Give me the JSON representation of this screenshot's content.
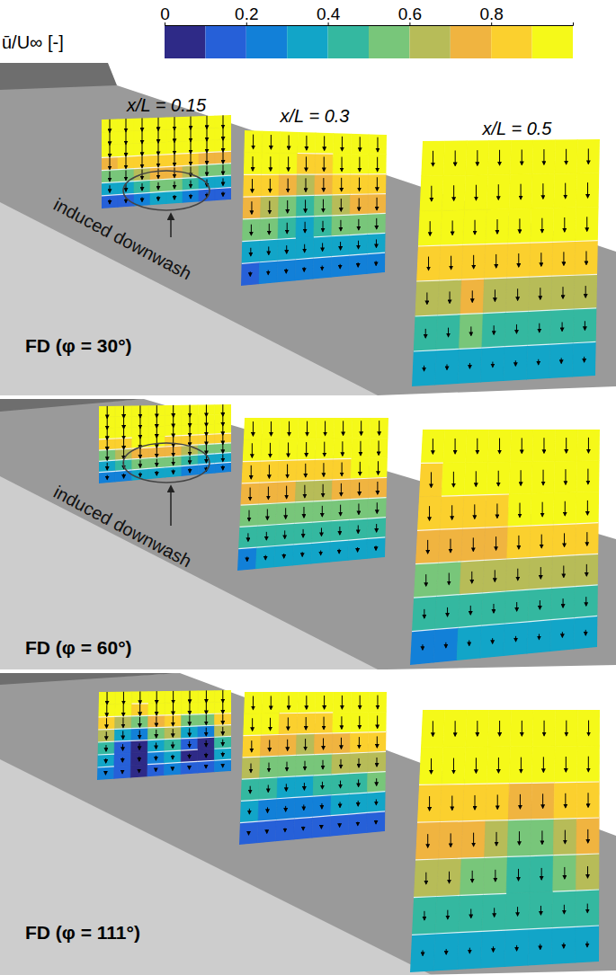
{
  "chart_data": {
    "type": "contour_panels",
    "colorbar": {
      "label": "ū/U∞ [-]",
      "range": [
        0,
        1
      ],
      "ticks": [
        0,
        0.2,
        0.4,
        0.6,
        0.8
      ],
      "colors": [
        "#2e2a87",
        "#2660d8",
        "#1280d8",
        "#12a5c8",
        "#34b8a0",
        "#78c67a",
        "#b7bc58",
        "#f0b440",
        "#fbd02e",
        "#f5f919"
      ]
    },
    "plane_labels": [
      "x/L = 0.15",
      "x/L = 0.3",
      "x/L = 0.5"
    ],
    "panels": [
      {
        "title": "FD (φ = 30°)",
        "annotation": "induced downwash",
        "planes": [
          {
            "cells": [
              [
                0.95,
                0.95,
                0.95,
                0.95,
                0.95,
                0.95,
                0.95,
                0.95
              ],
              [
                0.95,
                0.95,
                0.95,
                0.95,
                0.95,
                0.95,
                0.95,
                0.95
              ],
              [
                0.95,
                0.95,
                0.95,
                0.95,
                0.95,
                0.95,
                0.95,
                0.95
              ],
              [
                0.75,
                0.8,
                0.85,
                0.85,
                0.85,
                0.8,
                0.75,
                0.75
              ],
              [
                0.5,
                0.55,
                0.65,
                0.75,
                0.7,
                0.6,
                0.5,
                0.5
              ],
              [
                0.3,
                0.35,
                0.45,
                0.55,
                0.5,
                0.4,
                0.3,
                0.3
              ],
              [
                0.15,
                0.15,
                0.25,
                0.35,
                0.3,
                0.2,
                0.15,
                0.15
              ]
            ],
            "w": [
              -0.3,
              -0.3,
              -0.28,
              -0.26,
              -0.22,
              -0.16,
              -0.1
            ]
          },
          {
            "cells": [
              [
                0.95,
                0.95,
                0.95,
                0.95,
                0.95,
                0.95,
                0.95,
                0.95
              ],
              [
                0.95,
                0.95,
                0.95,
                0.85,
                0.85,
                0.95,
                0.95,
                0.95
              ],
              [
                0.85,
                0.8,
                0.75,
                0.65,
                0.7,
                0.8,
                0.85,
                0.85
              ],
              [
                0.7,
                0.65,
                0.55,
                0.45,
                0.5,
                0.65,
                0.7,
                0.7
              ],
              [
                0.5,
                0.5,
                0.45,
                0.35,
                0.4,
                0.5,
                0.5,
                0.5
              ],
              [
                0.35,
                0.35,
                0.3,
                0.3,
                0.3,
                0.35,
                0.35,
                0.35
              ],
              [
                0.15,
                0.2,
                0.2,
                0.2,
                0.2,
                0.2,
                0.2,
                0.2
              ]
            ],
            "w": [
              -0.32,
              -0.32,
              -0.3,
              -0.28,
              -0.24,
              -0.18,
              -0.1
            ]
          },
          {
            "cells": [
              [
                0.95,
                0.95,
                0.95,
                0.95,
                0.95,
                0.95,
                0.95,
                0.95
              ],
              [
                0.95,
                0.95,
                0.95,
                0.95,
                0.95,
                0.95,
                0.95,
                0.95
              ],
              [
                0.95,
                0.95,
                0.95,
                0.95,
                0.95,
                0.95,
                0.95,
                0.95
              ],
              [
                0.8,
                0.8,
                0.85,
                0.85,
                0.8,
                0.8,
                0.8,
                0.8
              ],
              [
                0.65,
                0.65,
                0.7,
                0.65,
                0.6,
                0.6,
                0.6,
                0.6
              ],
              [
                0.45,
                0.45,
                0.5,
                0.45,
                0.4,
                0.45,
                0.45,
                0.45
              ],
              [
                0.35,
                0.35,
                0.35,
                0.3,
                0.3,
                0.35,
                0.35,
                0.35
              ]
            ],
            "w": [
              -0.34,
              -0.34,
              -0.32,
              -0.3,
              -0.26,
              -0.2,
              -0.12
            ]
          }
        ]
      },
      {
        "title": "FD (φ = 60°)",
        "annotation": "induced downwash",
        "planes": [
          {
            "cells": [
              [
                0.95,
                0.95,
                0.95,
                0.95,
                0.95,
                0.95,
                0.95,
                0.95
              ],
              [
                0.95,
                0.95,
                0.95,
                0.95,
                0.95,
                0.95,
                0.95,
                0.95
              ],
              [
                0.95,
                0.95,
                0.95,
                0.95,
                0.95,
                0.95,
                0.95,
                0.95
              ],
              [
                0.8,
                0.85,
                0.9,
                0.9,
                0.85,
                0.8,
                0.8,
                0.8
              ],
              [
                0.55,
                0.6,
                0.7,
                0.75,
                0.7,
                0.6,
                0.55,
                0.55
              ],
              [
                0.35,
                0.4,
                0.5,
                0.55,
                0.5,
                0.4,
                0.35,
                0.35
              ],
              [
                0.2,
                0.2,
                0.3,
                0.35,
                0.3,
                0.25,
                0.2,
                0.2
              ]
            ],
            "w": [
              -0.3,
              -0.3,
              -0.28,
              -0.26,
              -0.22,
              -0.16,
              -0.1
            ]
          },
          {
            "cells": [
              [
                0.95,
                0.95,
                0.95,
                0.95,
                0.95,
                0.95,
                0.95,
                0.95
              ],
              [
                0.95,
                0.95,
                0.95,
                0.95,
                0.95,
                0.95,
                0.95,
                0.95
              ],
              [
                0.85,
                0.85,
                0.85,
                0.8,
                0.8,
                0.85,
                0.9,
                0.9
              ],
              [
                0.7,
                0.7,
                0.7,
                0.65,
                0.65,
                0.7,
                0.75,
                0.75
              ],
              [
                0.55,
                0.55,
                0.55,
                0.5,
                0.5,
                0.55,
                0.55,
                0.55
              ],
              [
                0.4,
                0.4,
                0.4,
                0.4,
                0.4,
                0.4,
                0.4,
                0.4
              ],
              [
                0.25,
                0.3,
                0.3,
                0.3,
                0.3,
                0.3,
                0.3,
                0.3
              ]
            ],
            "w": [
              -0.32,
              -0.32,
              -0.3,
              -0.28,
              -0.24,
              -0.18,
              -0.1
            ]
          },
          {
            "cells": [
              [
                0.95,
                0.95,
                0.95,
                0.95,
                0.95,
                0.95,
                0.95,
                0.95
              ],
              [
                0.85,
                0.9,
                0.95,
                0.95,
                0.95,
                0.95,
                0.95,
                0.95
              ],
              [
                0.8,
                0.8,
                0.85,
                0.85,
                0.9,
                0.9,
                0.95,
                0.95
              ],
              [
                0.7,
                0.7,
                0.75,
                0.75,
                0.8,
                0.8,
                0.8,
                0.85
              ],
              [
                0.55,
                0.55,
                0.6,
                0.6,
                0.65,
                0.65,
                0.65,
                0.65
              ],
              [
                0.4,
                0.4,
                0.45,
                0.45,
                0.45,
                0.45,
                0.45,
                0.45
              ],
              [
                0.2,
                0.25,
                0.3,
                0.35,
                0.35,
                0.35,
                0.35,
                0.35
              ]
            ],
            "w": [
              -0.34,
              -0.34,
              -0.32,
              -0.3,
              -0.26,
              -0.2,
              -0.12
            ]
          }
        ]
      },
      {
        "title": "FD (φ = 111°)",
        "planes": [
          {
            "cells": [
              [
                0.95,
                0.95,
                0.95,
                0.95,
                0.95,
                0.95,
                0.95,
                0.95
              ],
              [
                0.95,
                0.9,
                0.85,
                0.9,
                0.95,
                0.9,
                0.9,
                0.95
              ],
              [
                0.8,
                0.6,
                0.5,
                0.7,
                0.8,
                0.55,
                0.5,
                0.8
              ],
              [
                0.6,
                0.35,
                0.25,
                0.5,
                0.6,
                0.3,
                0.25,
                0.6
              ],
              [
                0.4,
                0.15,
                0.05,
                0.35,
                0.4,
                0.1,
                0.05,
                0.4
              ],
              [
                0.3,
                0.1,
                0,
                0.25,
                0.3,
                0.05,
                0,
                0.3
              ],
              [
                0.2,
                0.1,
                0.05,
                0.15,
                0.2,
                0.1,
                0.1,
                0.2
              ]
            ],
            "w": [
              -0.28,
              -0.26,
              -0.22,
              -0.18,
              -0.14,
              -0.1,
              -0.06
            ]
          },
          {
            "cells": [
              [
                0.95,
                0.95,
                0.95,
                0.95,
                0.95,
                0.95,
                0.95,
                0.95
              ],
              [
                0.95,
                0.9,
                0.85,
                0.8,
                0.85,
                0.9,
                0.95,
                0.95
              ],
              [
                0.8,
                0.75,
                0.7,
                0.65,
                0.7,
                0.75,
                0.8,
                0.85
              ],
              [
                0.6,
                0.55,
                0.5,
                0.5,
                0.55,
                0.6,
                0.65,
                0.65
              ],
              [
                0.45,
                0.4,
                0.35,
                0.35,
                0.4,
                0.45,
                0.45,
                0.5
              ],
              [
                0.3,
                0.25,
                0.25,
                0.25,
                0.25,
                0.3,
                0.3,
                0.3
              ],
              [
                0.15,
                0.15,
                0.15,
                0.15,
                0.15,
                0.15,
                0.15,
                0.15
              ]
            ],
            "w": [
              -0.3,
              -0.28,
              -0.25,
              -0.2,
              -0.16,
              -0.12,
              -0.08
            ]
          },
          {
            "cells": [
              [
                0.95,
                0.95,
                0.95,
                0.95,
                0.95,
                0.95,
                0.95,
                0.95
              ],
              [
                0.95,
                0.95,
                0.95,
                0.95,
                0.9,
                0.9,
                0.95,
                0.95
              ],
              [
                0.85,
                0.85,
                0.85,
                0.8,
                0.7,
                0.7,
                0.8,
                0.85
              ],
              [
                0.75,
                0.75,
                0.7,
                0.65,
                0.55,
                0.55,
                0.65,
                0.75
              ],
              [
                0.6,
                0.6,
                0.55,
                0.5,
                0.45,
                0.45,
                0.5,
                0.6
              ],
              [
                0.45,
                0.45,
                0.4,
                0.4,
                0.4,
                0.4,
                0.4,
                0.45
              ],
              [
                0.35,
                0.35,
                0.35,
                0.35,
                0.35,
                0.35,
                0.35,
                0.35
              ]
            ],
            "w": [
              -0.34,
              -0.34,
              -0.32,
              -0.3,
              -0.26,
              -0.2,
              -0.12
            ]
          }
        ]
      }
    ]
  }
}
